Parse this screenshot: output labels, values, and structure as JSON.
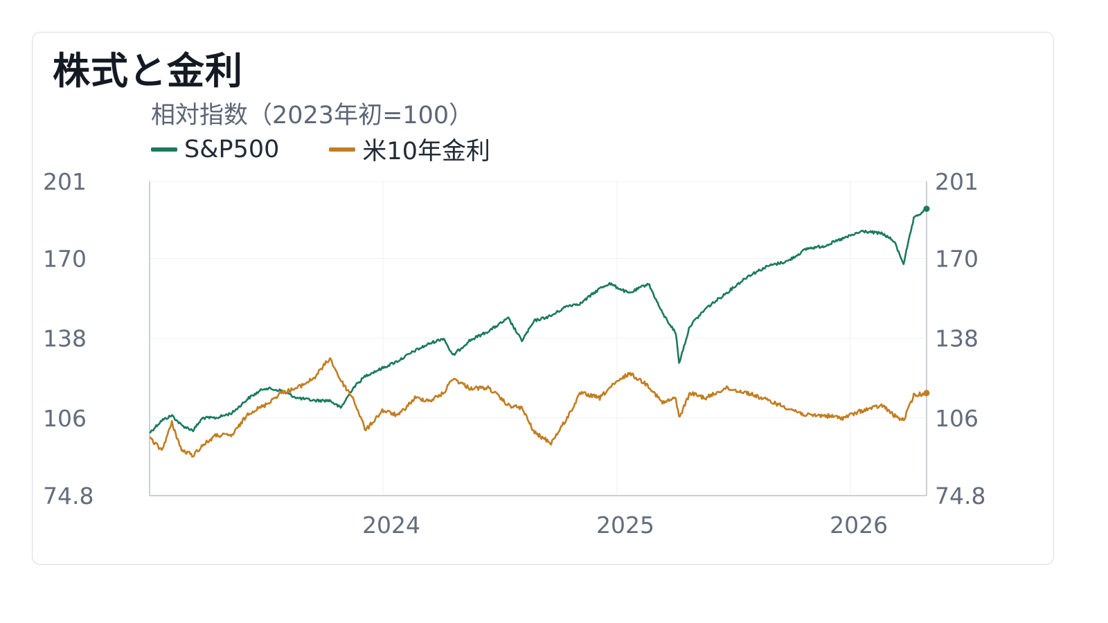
{
  "header": {
    "title": "株式と金利",
    "subtitle": "相対指数（2023年初=100）"
  },
  "chart_data": {
    "type": "line",
    "title": "株式と金利",
    "subtitle": "相対指数（2023年初=100）",
    "xlabel": "",
    "ylabel": "",
    "x_range": [
      "2023-01-01",
      "2026-04-30"
    ],
    "ylim": [
      74.8,
      201
    ],
    "y_ticks": [
      "74.8",
      "106",
      "138",
      "170",
      "201"
    ],
    "y_tick_values": [
      74.8,
      106,
      138,
      170,
      201
    ],
    "x_ticks": [
      "2024",
      "2025",
      "2026"
    ],
    "x_tick_dates": [
      "2024-01-01",
      "2025-01-01",
      "2026-01-01"
    ],
    "dual_axis_same_scale": true,
    "grid": true,
    "legend_position": "top-left",
    "series": [
      {
        "name": "S&P500",
        "color": "#1b7a5d",
        "x": [
          "2023-01-01",
          "2023-01-20",
          "2023-02-05",
          "2023-02-20",
          "2023-03-10",
          "2023-03-25",
          "2023-04-15",
          "2023-05-10",
          "2023-06-05",
          "2023-06-30",
          "2023-07-25",
          "2023-08-20",
          "2023-09-15",
          "2023-10-10",
          "2023-10-27",
          "2023-11-15",
          "2023-12-05",
          "2023-12-31",
          "2024-01-25",
          "2024-02-20",
          "2024-03-15",
          "2024-04-05",
          "2024-04-19",
          "2024-05-15",
          "2024-06-15",
          "2024-07-15",
          "2024-08-05",
          "2024-08-25",
          "2024-09-20",
          "2024-10-15",
          "2024-11-05",
          "2024-12-05",
          "2024-12-20",
          "2025-01-20",
          "2025-02-19",
          "2025-03-13",
          "2025-04-03",
          "2025-04-08",
          "2025-04-25",
          "2025-05-20",
          "2025-06-20",
          "2025-07-25",
          "2025-08-25",
          "2025-09-25",
          "2025-10-25",
          "2025-11-20",
          "2025-12-20",
          "2026-01-20",
          "2026-02-20",
          "2026-03-10",
          "2026-03-25",
          "2026-04-10",
          "2026-04-30"
        ],
        "values": [
          100,
          105,
          107,
          103,
          101,
          106,
          106,
          108,
          114,
          118,
          117,
          114,
          113,
          113,
          110,
          118,
          123,
          126,
          129,
          133,
          136,
          138,
          131,
          137,
          141,
          146,
          137,
          145,
          147,
          151,
          152,
          158,
          160,
          156,
          160,
          148,
          140,
          128,
          143,
          150,
          156,
          163,
          167,
          169,
          174,
          175,
          178,
          181,
          180,
          177,
          168,
          186,
          190
        ]
      },
      {
        "name": "米10年金利",
        "color": "#c27d21",
        "x": [
          "2023-01-01",
          "2023-01-20",
          "2023-02-05",
          "2023-02-20",
          "2023-03-10",
          "2023-03-25",
          "2023-04-15",
          "2023-05-10",
          "2023-06-05",
          "2023-06-30",
          "2023-07-25",
          "2023-08-20",
          "2023-09-15",
          "2023-10-10",
          "2023-10-27",
          "2023-11-15",
          "2023-12-05",
          "2023-12-31",
          "2024-01-25",
          "2024-02-20",
          "2024-03-15",
          "2024-04-05",
          "2024-04-19",
          "2024-05-15",
          "2024-06-15",
          "2024-07-15",
          "2024-08-05",
          "2024-08-25",
          "2024-09-20",
          "2024-10-15",
          "2024-11-05",
          "2024-12-05",
          "2024-12-20",
          "2025-01-20",
          "2025-02-19",
          "2025-03-13",
          "2025-04-03",
          "2025-04-08",
          "2025-04-25",
          "2025-05-20",
          "2025-06-20",
          "2025-07-25",
          "2025-08-25",
          "2025-09-25",
          "2025-10-25",
          "2025-11-20",
          "2025-12-20",
          "2026-01-20",
          "2026-02-20",
          "2026-03-10",
          "2026-03-25",
          "2026-04-10",
          "2026-04-30"
        ],
        "values": [
          98,
          93,
          104,
          93,
          91,
          95,
          99,
          99,
          108,
          111,
          116,
          118,
          122,
          130,
          121,
          114,
          101,
          109,
          107,
          114,
          113,
          116,
          122,
          118,
          118,
          111,
          110,
          100,
          96,
          106,
          116,
          114,
          118,
          124,
          119,
          112,
          114,
          106,
          116,
          114,
          118,
          116,
          113,
          110,
          107,
          107,
          106,
          109,
          111,
          107,
          105,
          115,
          116
        ]
      }
    ]
  }
}
